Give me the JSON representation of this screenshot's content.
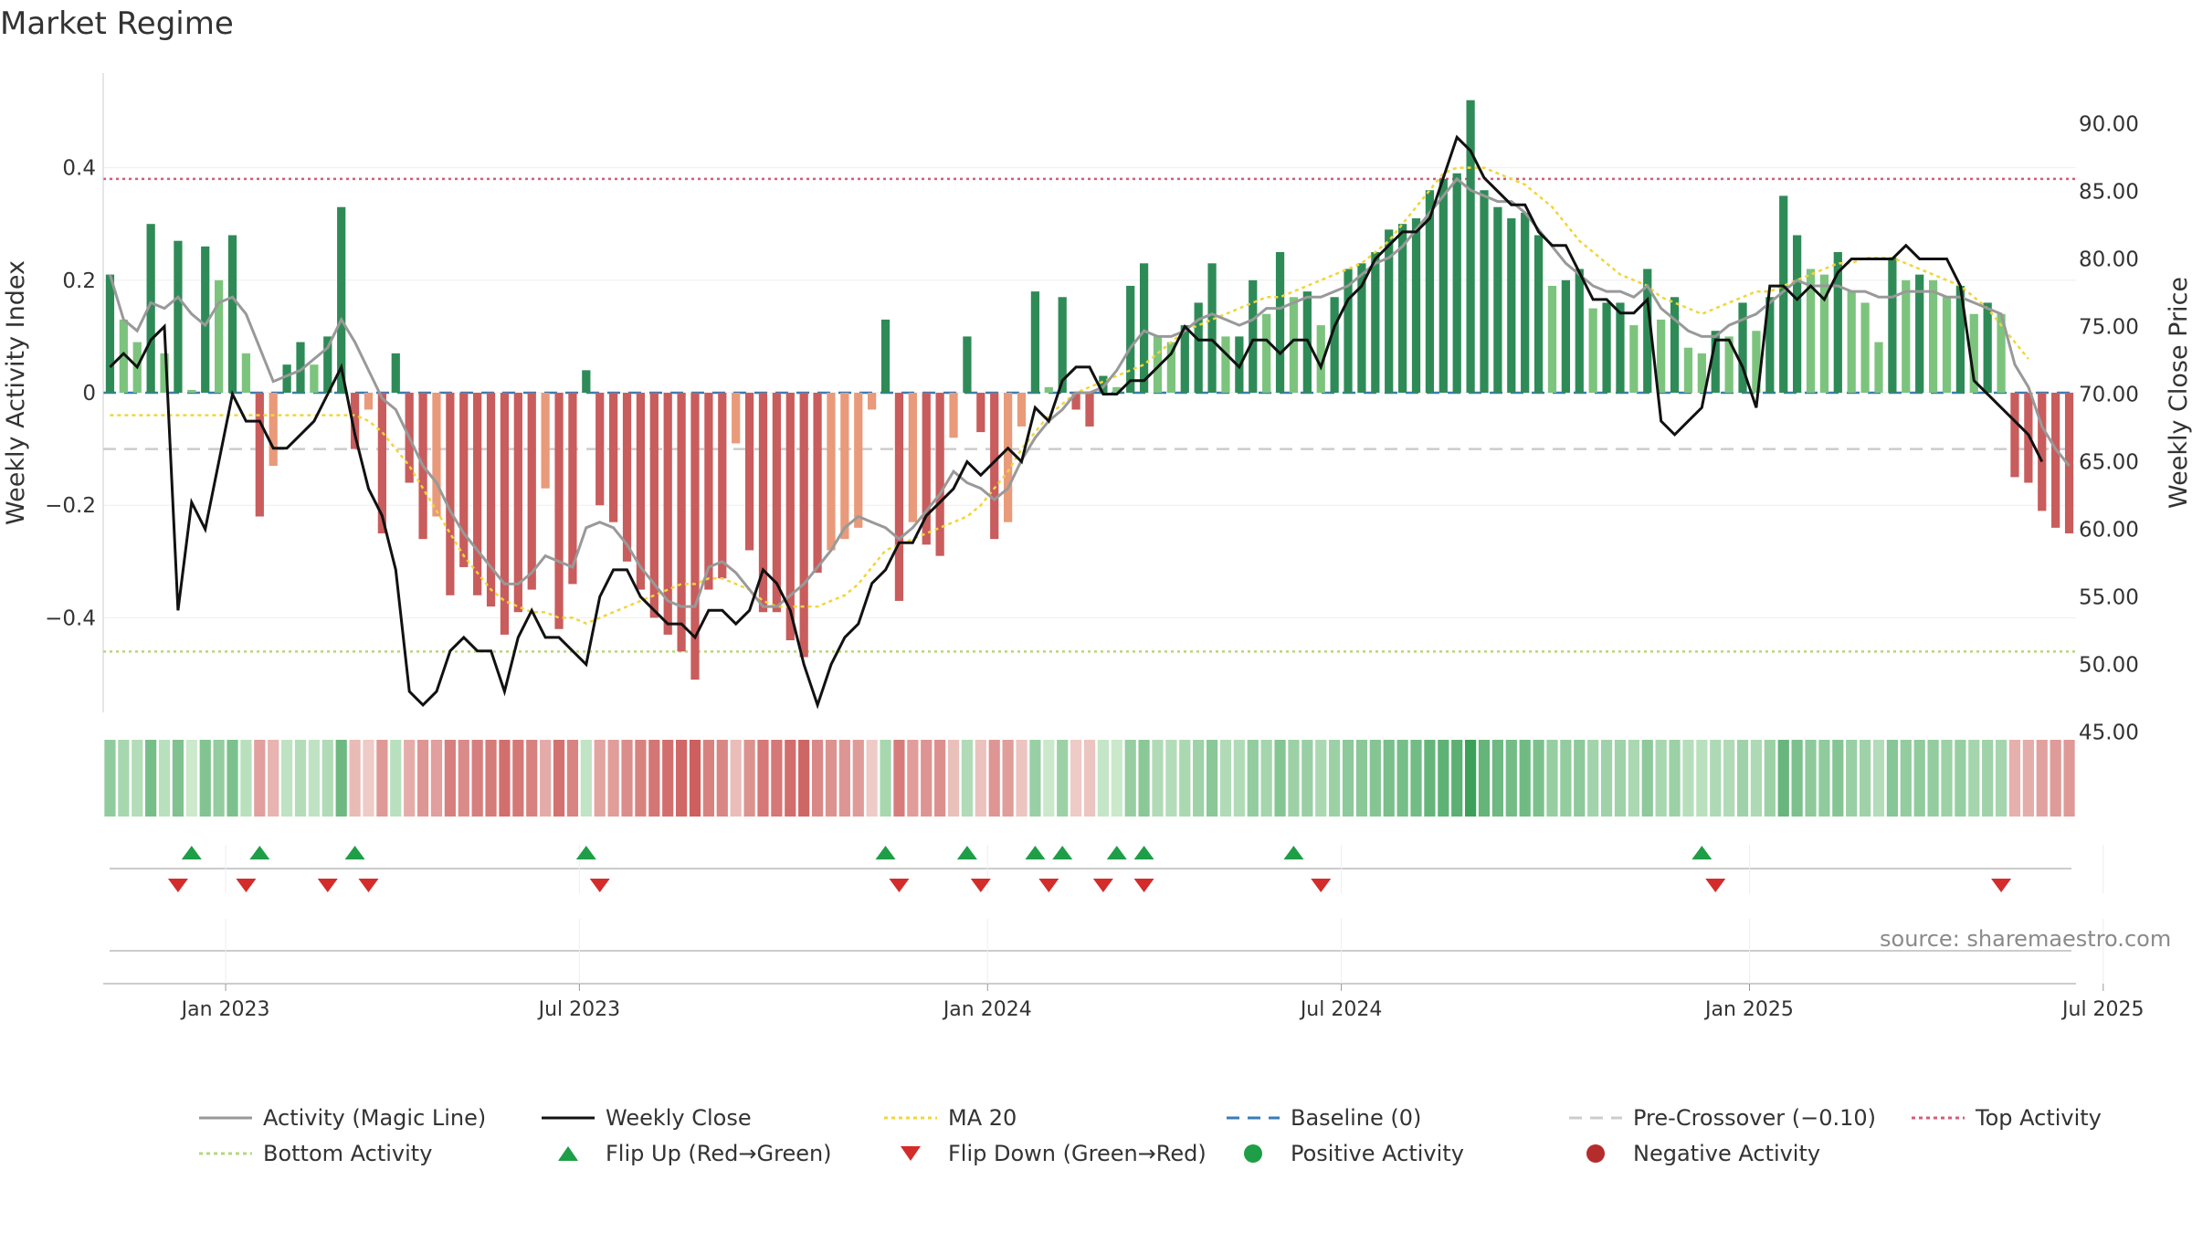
{
  "title": "Market Regime",
  "source": "source: sharemaestro.com",
  "chart_data": {
    "type": "bar",
    "x_ticks": [
      "Jan 2023",
      "Jul 2023",
      "Jan 2024",
      "Jul 2024",
      "Jan 2025",
      "Jul 2025"
    ],
    "left_axis": {
      "label": "Weekly Activity Index",
      "ticks": [
        0.4,
        0.2,
        0,
        -0.2,
        -0.4
      ],
      "tick_labels": [
        "0.4",
        "0.2",
        "0",
        "−0.2",
        "−0.4"
      ],
      "range": [
        -0.56,
        0.56
      ]
    },
    "right_axis": {
      "label": "Weekly Close Price",
      "ticks": [
        90,
        85,
        80,
        75,
        70,
        65,
        60,
        55,
        50,
        45
      ],
      "tick_labels": [
        "90.00",
        "85.00",
        "80.00",
        "75.00",
        "70.00",
        "65.00",
        "60.00",
        "55.00",
        "50.00",
        "45.00"
      ],
      "range": [
        43.5,
        91.0
      ]
    },
    "levels": {
      "top_activity": 0.38,
      "bottom_activity": -0.46,
      "pre_crossover": -0.1,
      "baseline": 0
    },
    "activity": [
      0.21,
      0.13,
      0.09,
      0.3,
      0.07,
      0.27,
      0.005,
      0.26,
      0.2,
      0.28,
      0.07,
      -0.22,
      -0.13,
      0.05,
      0.09,
      0.05,
      0.1,
      0.33,
      -0.1,
      -0.03,
      -0.25,
      0.07,
      -0.16,
      -0.26,
      -0.22,
      -0.36,
      -0.31,
      -0.36,
      -0.38,
      -0.43,
      -0.39,
      -0.35,
      -0.17,
      -0.42,
      -0.34,
      0.04,
      -0.2,
      -0.23,
      -0.3,
      -0.35,
      -0.4,
      -0.43,
      -0.46,
      -0.51,
      -0.35,
      -0.33,
      -0.09,
      -0.28,
      -0.39,
      -0.39,
      -0.44,
      -0.47,
      -0.32,
      -0.28,
      -0.26,
      -0.24,
      -0.03,
      0.13,
      -0.37,
      -0.23,
      -0.27,
      -0.29,
      -0.08,
      0.1,
      -0.07,
      -0.26,
      -0.23,
      -0.06,
      0.18,
      0.01,
      0.17,
      -0.03,
      -0.06,
      0.03,
      0.01,
      0.19,
      0.23,
      0.1,
      0.09,
      0.12,
      0.16,
      0.23,
      0.1,
      0.1,
      0.2,
      0.14,
      0.25,
      0.17,
      0.18,
      0.12,
      0.17,
      0.22,
      0.23,
      0.25,
      0.29,
      0.3,
      0.31,
      0.36,
      0.38,
      0.39,
      0.52,
      0.36,
      0.33,
      0.31,
      0.32,
      0.28,
      0.19,
      0.2,
      0.22,
      0.15,
      0.16,
      0.16,
      0.12,
      0.22,
      0.13,
      0.17,
      0.08,
      0.07,
      0.11,
      0.1,
      0.16,
      0.11,
      0.17,
      0.35,
      0.28,
      0.22,
      0.21,
      0.25,
      0.18,
      0.16,
      0.09,
      0.24,
      0.2,
      0.21,
      0.2,
      0.17,
      0.19,
      0.14,
      0.16,
      0.14,
      -0.15,
      -0.16,
      -0.21,
      -0.24,
      -0.25
    ],
    "weekly_close": [
      72,
      73,
      72,
      74,
      75,
      54,
      62,
      60,
      65,
      70,
      68,
      68,
      66,
      66,
      67,
      68,
      70,
      72,
      67,
      63,
      61,
      57,
      48,
      47,
      48,
      51,
      52,
      51,
      51,
      48,
      52,
      54,
      52,
      52,
      51,
      50,
      55,
      57,
      57,
      55,
      54,
      53,
      53,
      52,
      54,
      54,
      53,
      54,
      57,
      56,
      54,
      50,
      47,
      50,
      52,
      53,
      56,
      57,
      59,
      59,
      61,
      62,
      63,
      65,
      64,
      65,
      66,
      65,
      69,
      68,
      71,
      72,
      72,
      70,
      70,
      71,
      71,
      72,
      73,
      75,
      74,
      74,
      73,
      72,
      74,
      74,
      73,
      74,
      74,
      72,
      75,
      77,
      78,
      80,
      81,
      82,
      82,
      83,
      86,
      89,
      88,
      86,
      85,
      84,
      84,
      82,
      81,
      81,
      79,
      77,
      77,
      76,
      76,
      77,
      68,
      67,
      68,
      69,
      74,
      74,
      72,
      69,
      78,
      78,
      77,
      78,
      77,
      79,
      80,
      80,
      80,
      80,
      81,
      80,
      80,
      80,
      78,
      71,
      70,
      69,
      68,
      67,
      65
    ],
    "magic_line": [
      0.21,
      0.13,
      0.11,
      0.16,
      0.15,
      0.17,
      0.14,
      0.12,
      0.16,
      0.17,
      0.14,
      0.08,
      0.02,
      0.03,
      0.04,
      0.06,
      0.08,
      0.13,
      0.09,
      0.04,
      -0.01,
      -0.03,
      -0.08,
      -0.13,
      -0.16,
      -0.21,
      -0.25,
      -0.28,
      -0.31,
      -0.34,
      -0.34,
      -0.32,
      -0.29,
      -0.3,
      -0.31,
      -0.24,
      -0.23,
      -0.24,
      -0.27,
      -0.31,
      -0.34,
      -0.37,
      -0.38,
      -0.38,
      -0.31,
      -0.3,
      -0.32,
      -0.35,
      -0.38,
      -0.38,
      -0.36,
      -0.34,
      -0.31,
      -0.28,
      -0.24,
      -0.22,
      -0.23,
      -0.24,
      -0.26,
      -0.24,
      -0.21,
      -0.18,
      -0.14,
      -0.16,
      -0.17,
      -0.19,
      -0.17,
      -0.12,
      -0.08,
      -0.05,
      -0.03,
      0.0,
      0.0,
      0.01,
      0.04,
      0.08,
      0.11,
      0.1,
      0.1,
      0.11,
      0.13,
      0.14,
      0.13,
      0.12,
      0.13,
      0.15,
      0.15,
      0.16,
      0.17,
      0.17,
      0.18,
      0.19,
      0.21,
      0.23,
      0.24,
      0.26,
      0.29,
      0.32,
      0.35,
      0.38,
      0.36,
      0.35,
      0.34,
      0.34,
      0.32,
      0.29,
      0.26,
      0.23,
      0.21,
      0.19,
      0.18,
      0.18,
      0.17,
      0.19,
      0.15,
      0.13,
      0.11,
      0.1,
      0.1,
      0.12,
      0.13,
      0.14,
      0.16,
      0.18,
      0.2,
      0.19,
      0.19,
      0.19,
      0.18,
      0.18,
      0.17,
      0.17,
      0.18,
      0.18,
      0.18,
      0.17,
      0.17,
      0.16,
      0.15,
      0.14,
      0.05,
      0.01,
      -0.06,
      -0.1,
      -0.13
    ],
    "ma20": [
      -0.04,
      -0.04,
      -0.04,
      -0.04,
      -0.04,
      -0.04,
      -0.04,
      -0.04,
      -0.04,
      -0.04,
      -0.04,
      -0.04,
      -0.04,
      -0.04,
      -0.04,
      -0.04,
      -0.04,
      -0.04,
      -0.04,
      -0.05,
      -0.07,
      -0.1,
      -0.13,
      -0.17,
      -0.21,
      -0.25,
      -0.29,
      -0.32,
      -0.35,
      -0.37,
      -0.38,
      -0.39,
      -0.39,
      -0.4,
      -0.4,
      -0.41,
      -0.4,
      -0.39,
      -0.38,
      -0.37,
      -0.36,
      -0.35,
      -0.34,
      -0.34,
      -0.33,
      -0.33,
      -0.34,
      -0.35,
      -0.37,
      -0.38,
      -0.38,
      -0.38,
      -0.38,
      -0.37,
      -0.36,
      -0.34,
      -0.31,
      -0.28,
      -0.27,
      -0.26,
      -0.25,
      -0.24,
      -0.23,
      -0.22,
      -0.2,
      -0.17,
      -0.14,
      -0.1,
      -0.07,
      -0.04,
      -0.02,
      0.0,
      0.01,
      0.02,
      0.03,
      0.04,
      0.05,
      0.07,
      0.09,
      0.11,
      0.12,
      0.13,
      0.14,
      0.15,
      0.16,
      0.17,
      0.17,
      0.18,
      0.19,
      0.2,
      0.21,
      0.22,
      0.23,
      0.25,
      0.27,
      0.3,
      0.33,
      0.36,
      0.39,
      0.4,
      0.4,
      0.4,
      0.39,
      0.38,
      0.37,
      0.35,
      0.33,
      0.3,
      0.27,
      0.25,
      0.23,
      0.21,
      0.2,
      0.19,
      0.17,
      0.16,
      0.15,
      0.14,
      0.15,
      0.16,
      0.17,
      0.18,
      0.18,
      0.19,
      0.2,
      0.21,
      0.22,
      0.23,
      0.23,
      0.24,
      0.24,
      0.24,
      0.23,
      0.22,
      0.21,
      0.2,
      0.19,
      0.17,
      0.15,
      0.12,
      0.09,
      0.06
    ],
    "heat_strip": [
      0.21,
      0.13,
      0.09,
      0.3,
      0.07,
      0.27,
      0.005,
      0.26,
      0.2,
      0.28,
      0.07,
      -0.22,
      -0.13,
      0.05,
      0.09,
      0.05,
      0.1,
      0.33,
      -0.1,
      -0.03,
      -0.25,
      0.07,
      -0.16,
      -0.26,
      -0.22,
      -0.36,
      -0.31,
      -0.36,
      -0.38,
      -0.43,
      -0.39,
      -0.35,
      -0.17,
      -0.42,
      -0.34,
      0.04,
      -0.2,
      -0.23,
      -0.3,
      -0.35,
      -0.4,
      -0.43,
      -0.46,
      -0.51,
      -0.35,
      -0.33,
      -0.09,
      -0.28,
      -0.39,
      -0.39,
      -0.44,
      -0.47,
      -0.32,
      -0.28,
      -0.26,
      -0.24,
      -0.03,
      0.13,
      -0.37,
      -0.23,
      -0.27,
      -0.29,
      -0.08,
      0.1,
      -0.07,
      -0.26,
      -0.23,
      -0.06,
      0.18,
      0.01,
      0.17,
      -0.03,
      -0.06,
      0.03,
      0.01,
      0.19,
      0.23,
      0.1,
      0.09,
      0.12,
      0.16,
      0.23,
      0.1,
      0.1,
      0.2,
      0.14,
      0.25,
      0.17,
      0.18,
      0.12,
      0.17,
      0.22,
      0.23,
      0.25,
      0.29,
      0.3,
      0.31,
      0.36,
      0.38,
      0.39,
      0.52,
      0.36,
      0.33,
      0.31,
      0.32,
      0.28,
      0.19,
      0.2,
      0.22,
      0.15,
      0.16,
      0.16,
      0.12,
      0.22,
      0.13,
      0.17,
      0.08,
      0.07,
      0.11,
      0.1,
      0.16,
      0.11,
      0.17,
      0.35,
      0.28,
      0.22,
      0.21,
      0.25,
      0.18,
      0.16,
      0.09,
      0.24,
      0.2,
      0.21,
      0.2,
      0.17,
      0.19,
      0.14,
      0.16,
      0.14,
      -0.15,
      -0.16,
      -0.21,
      -0.24,
      -0.25
    ],
    "flip_up_weeks": [
      6,
      11,
      18,
      35,
      57,
      63,
      68,
      70,
      74,
      76,
      87,
      117
    ],
    "flip_down_weeks": [
      5,
      10,
      16,
      19,
      36,
      58,
      64,
      69,
      73,
      76,
      89,
      118,
      139
    ],
    "legend": [
      {
        "label": "Activity (Magic Line)",
        "marker": "solid-line",
        "color": "#999999"
      },
      {
        "label": "Weekly Close",
        "marker": "solid-line",
        "color": "#111111"
      },
      {
        "label": "MA 20",
        "marker": "dotted-line",
        "color": "#f1d53a"
      },
      {
        "label": "Baseline (0)",
        "marker": "dashed-line",
        "color": "#3a7cb5"
      },
      {
        "label": "Pre-Crossover (−0.10)",
        "marker": "dashed-line",
        "color": "#cccccc"
      },
      {
        "label": "Top Activity",
        "marker": "dotted-line",
        "color": "#d35d7a"
      },
      {
        "label": "Bottom Activity",
        "marker": "dotted-line",
        "color": "#b7d77a"
      },
      {
        "label": "Flip Up (Red→Green)",
        "marker": "triangle-up",
        "color": "#1e9e47"
      },
      {
        "label": "Flip Down (Green→Red)",
        "marker": "triangle-down",
        "color": "#d42b2b"
      },
      {
        "label": "Positive Activity",
        "marker": "circle",
        "color": "#1e9e47"
      },
      {
        "label": "Negative Activity",
        "marker": "circle",
        "color": "#b52c2c"
      }
    ]
  }
}
